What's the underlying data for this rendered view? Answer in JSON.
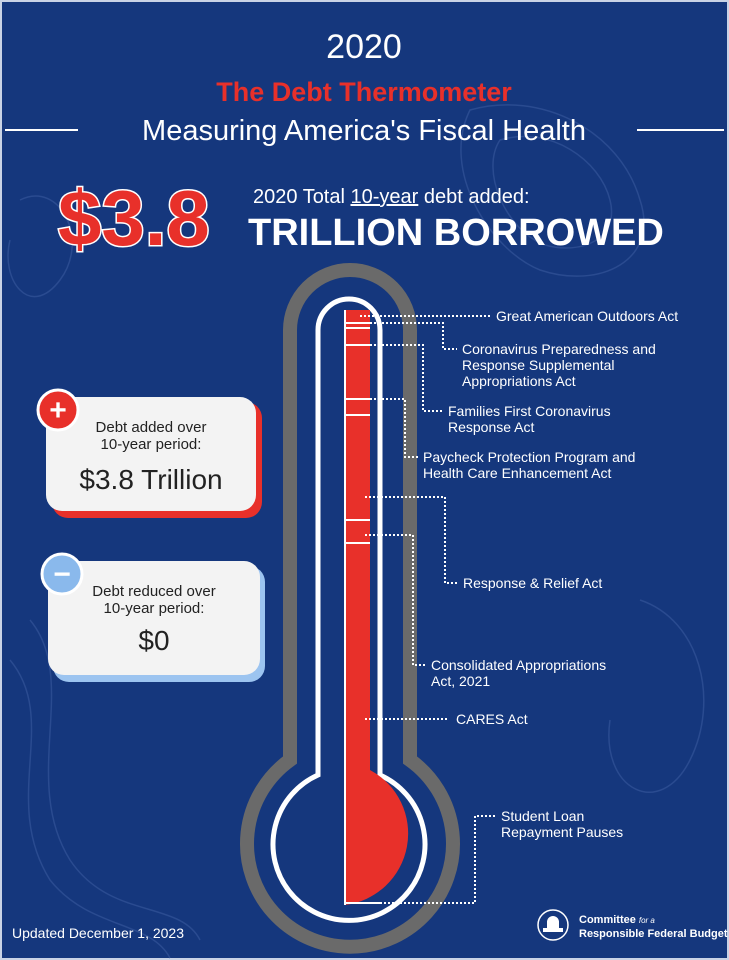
{
  "header": {
    "year": "2020",
    "title": "The Debt Thermometer",
    "subtitle": "Measuring America's Fiscal Health"
  },
  "headline": {
    "amount": "$3.8",
    "line1_prefix": "2020 Total ",
    "line1_underlined": "10-year",
    "line1_suffix": " debt added:",
    "line2": "TRILLION BORROWED"
  },
  "cards": [
    {
      "icon": "+",
      "label": [
        "Debt added over",
        "10-year period:"
      ],
      "value": "$3.8 Trillion"
    },
    {
      "icon": "−",
      "label": [
        "Debt reduced over",
        "10-year period:"
      ],
      "value": "$0"
    }
  ],
  "labels": [
    {
      "lines": [
        "Great American Outdoors Act"
      ]
    },
    {
      "lines": [
        "Coronavirus Preparedness and",
        "Response Supplemental",
        "Appropriations Act"
      ]
    },
    {
      "lines": [
        "Families First Coronavirus",
        "Response Act"
      ]
    },
    {
      "lines": [
        "Paycheck Protection Program and",
        "Health Care Enhancement Act"
      ]
    },
    {
      "lines": [
        "Response & Relief Act"
      ]
    },
    {
      "lines": [
        "Consolidated Appropriations",
        "Act, 2021"
      ]
    },
    {
      "lines": [
        "CARES Act"
      ]
    },
    {
      "lines": [
        "Student Loan",
        "Repayment Pauses"
      ]
    }
  ],
  "footer": {
    "updated": "Updated December 1, 2023",
    "org_line1": "Committee",
    "org_for": "for a",
    "org_line2": "Responsible Federal Budget"
  }
}
